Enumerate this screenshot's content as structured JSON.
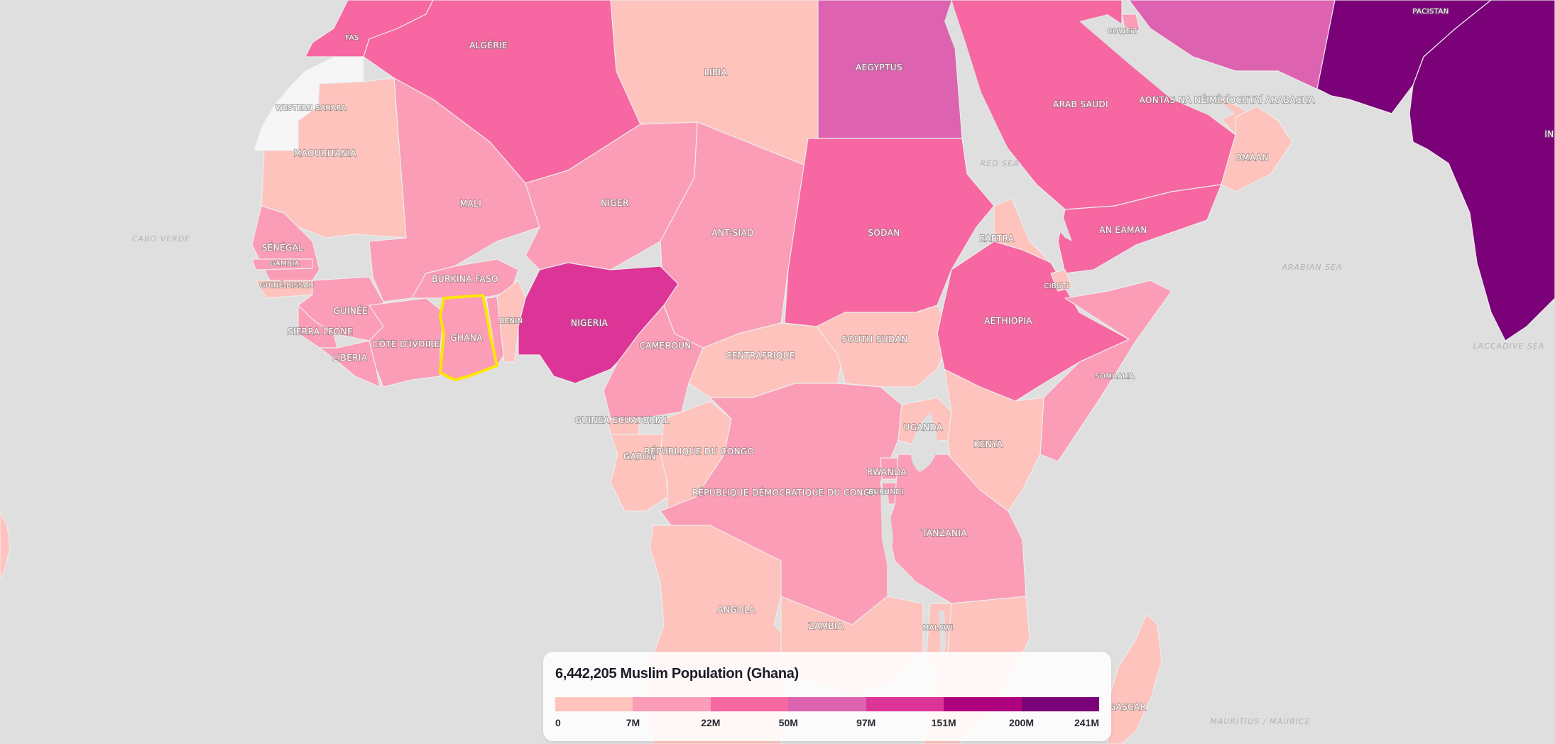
{
  "legend": {
    "title": "6,442,205 Muslim Population (Ghana)",
    "colors": [
      "#fec3bd",
      "#fb9db7",
      "#f767a1",
      "#dd62b0",
      "#dd3497",
      "#ae017e",
      "#7a0177"
    ],
    "ticks": [
      "0",
      "7M",
      "22M",
      "50M",
      "97M",
      "151M",
      "200M",
      "241M"
    ]
  },
  "selected_country": "GHANA",
  "countries": {
    "fas": "FAS",
    "algerie": "ALGÉRIE",
    "libia": "LIBIA",
    "aegyptus": "AEGYPTUS",
    "western_sahara": "WESTERN SAHARA",
    "mauritania": "MAOURITANIA",
    "mali": "MALI",
    "niger": "NIGER",
    "chad": "ANT-SIAD",
    "sudan": "SODAN",
    "eritrea": "EARTRA",
    "saudi": "ARAB SAUDI",
    "uae": "AONTAS NA NÉIMÍRÍOCHTAÍ ARABACHA",
    "oman": "OMAAN",
    "yemen": "AN EAMAN",
    "kuwait": "COWEIT",
    "pakistan": "PACISTAN",
    "india": "IN",
    "senegal": "SÉNÉGAL",
    "gambia": "GAMBIA",
    "guinea_bissau": "GUINÉ-BISSAU",
    "guinea": "GUINÉE",
    "sierra_leone": "SIERRA LEONE",
    "liberia": "LIBERIA",
    "cote_divoire": "CÔTE D'IVOIRE",
    "burkina_faso": "BURKINA FASO",
    "ghana": "GHANA",
    "benin": "BENIN",
    "nigeria": "NIGERIA",
    "cameroon": "CAMEROUN",
    "car": "CENTRAFRIQUE",
    "south_sudan": "SOUTH SUDAN",
    "ethiopia": "AETHIOPIA",
    "djibouti": "CIBUTI",
    "somalia": "SOMAALIA",
    "equatorial_guinea": "GUINEA ECUATORIAL",
    "gabon": "GABON",
    "congo": "RÉPUBLIQUE DU CONGO",
    "drc": "RÉPUBLIQUE DÉMOCRATIQUE DU CONGO",
    "uganda": "UGANDA",
    "kenya": "KENYA",
    "rwanda": "RWANDA",
    "burundi": "BURUNDI",
    "tanzania": "TANZANIA",
    "angola": "ANGOLA",
    "zambia": "ZAMBIA",
    "malawi": "MALAWI",
    "madagascar": "GASCAR"
  },
  "places": {
    "cabo_verde": "CABO VERDE",
    "red_sea": "RED SEA",
    "arabian_sea": "ARABIAN SEA",
    "laccadive_sea": "LACCADIVE SEA",
    "mauritius": "MAURITIUS / MAURICE"
  }
}
